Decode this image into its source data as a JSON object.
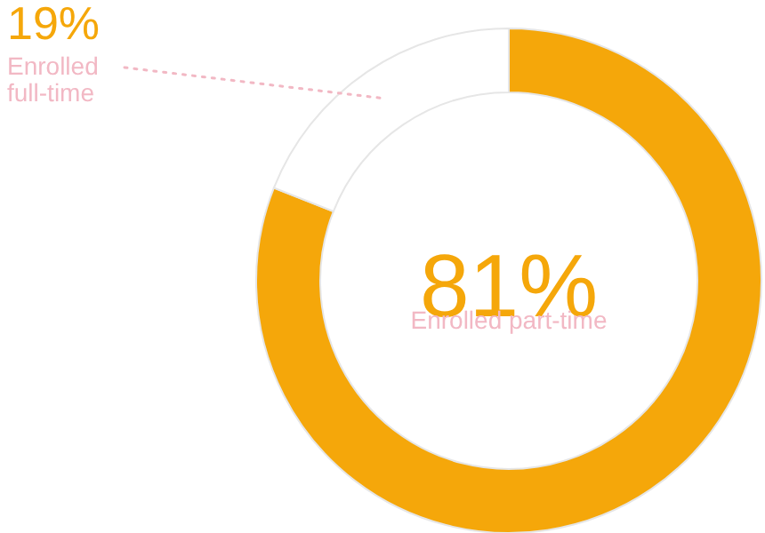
{
  "chart_data": {
    "type": "donut",
    "categories": [
      "Enrolled part-time",
      "Enrolled full-time"
    ],
    "values": [
      81,
      19
    ],
    "colors": [
      "#f5a70a",
      "#ffffff"
    ],
    "value_labels": [
      "81%",
      "19%"
    ]
  }
}
